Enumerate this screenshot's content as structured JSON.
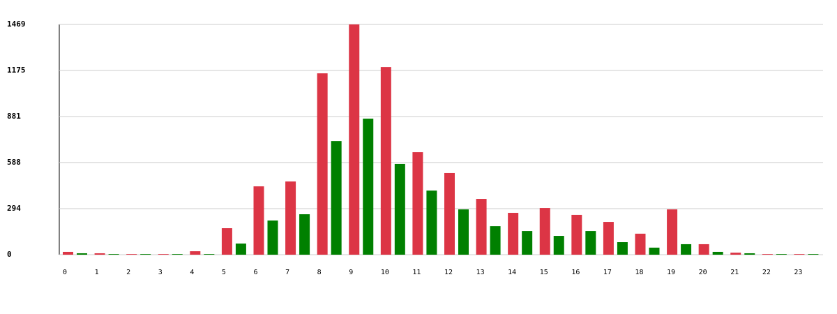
{
  "chart_data": {
    "type": "bar",
    "categories": [
      "0",
      "1",
      "2",
      "3",
      "4",
      "5",
      "6",
      "7",
      "8",
      "9",
      "10",
      "11",
      "12",
      "13",
      "14",
      "15",
      "16",
      "17",
      "18",
      "19",
      "20",
      "21",
      "22",
      "23"
    ],
    "series": [
      {
        "color": "#dc3545",
        "values": [
          18,
          9,
          4,
          4,
          22,
          169,
          436,
          467,
          1157,
          1469,
          1197,
          654,
          521,
          356,
          267,
          298,
          254,
          209,
          134,
          289,
          67,
          13,
          4,
          4
        ]
      },
      {
        "color": "#008000",
        "values": [
          9,
          4,
          4,
          4,
          4,
          71,
          218,
          258,
          725,
          868,
          579,
          409,
          289,
          182,
          151,
          120,
          151,
          80,
          45,
          67,
          18,
          9,
          4,
          4
        ]
      }
    ],
    "ylim": [
      0,
      1469
    ],
    "yticks": [
      0,
      294,
      588,
      881,
      1175,
      1469
    ],
    "grid": true
  }
}
